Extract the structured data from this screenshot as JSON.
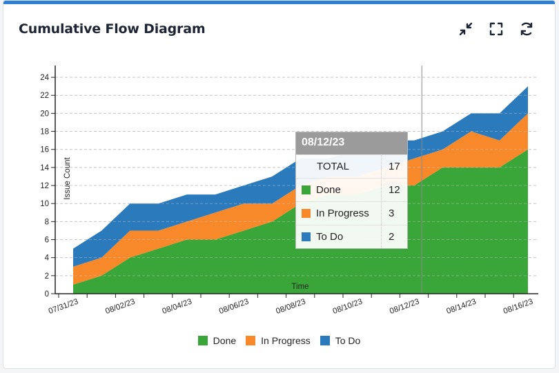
{
  "panel": {
    "title": "Cumulative Flow Diagram"
  },
  "toolbar": {
    "collapse_icon": "collapse-icon",
    "fullscreen_icon": "fullscreen-icon",
    "refresh_icon": "refresh-icon"
  },
  "colors": {
    "done": "#3aa539",
    "in_progress": "#f7892b",
    "to_do": "#2b7bbc"
  },
  "tooltip": {
    "date": "08/12/23",
    "rows": [
      {
        "label": "TOTAL",
        "value": "17"
      },
      {
        "label": "Done",
        "value": "12"
      },
      {
        "label": "In Progress",
        "value": "3"
      },
      {
        "label": "To Do",
        "value": "2"
      }
    ]
  },
  "chart_data": {
    "type": "area",
    "stacked": true,
    "title": "",
    "xlabel": "Time",
    "ylabel": "Issue Count",
    "ylim": [
      0,
      25
    ],
    "yticks": [
      0,
      2,
      4,
      6,
      8,
      10,
      12,
      14,
      16,
      18,
      20,
      22,
      24
    ],
    "x": [
      "07/31/23",
      "08/01/23",
      "08/02/23",
      "08/03/23",
      "08/04/23",
      "08/05/23",
      "08/06/23",
      "08/07/23",
      "08/08/23",
      "08/09/23",
      "08/10/23",
      "08/11/23",
      "08/12/23",
      "08/13/23",
      "08/14/23",
      "08/15/23",
      "08/16/23"
    ],
    "x_tick_labels": [
      "07/31/23",
      "08/02/23",
      "08/04/23",
      "08/06/23",
      "08/08/23",
      "08/10/23",
      "08/12/23",
      "08/14/23",
      "08/16/23"
    ],
    "series": [
      {
        "name": "Done",
        "values": [
          1,
          2,
          4,
          5,
          6,
          6,
          7,
          8,
          10,
          11,
          11,
          12,
          12,
          14,
          14,
          14,
          16
        ]
      },
      {
        "name": "In Progress",
        "values": [
          2,
          2,
          3,
          2,
          2,
          3,
          3,
          2,
          2,
          2,
          2,
          2,
          3,
          2,
          4,
          3,
          4
        ]
      },
      {
        "name": "To Do",
        "values": [
          2,
          3,
          3,
          3,
          3,
          2,
          2,
          3,
          3,
          2,
          3,
          3,
          2,
          2,
          2,
          3,
          3
        ]
      }
    ],
    "hover_index": 12,
    "legend_position": "bottom",
    "grid": true
  },
  "legend": [
    {
      "label": "Done"
    },
    {
      "label": "In Progress"
    },
    {
      "label": "To Do"
    }
  ]
}
